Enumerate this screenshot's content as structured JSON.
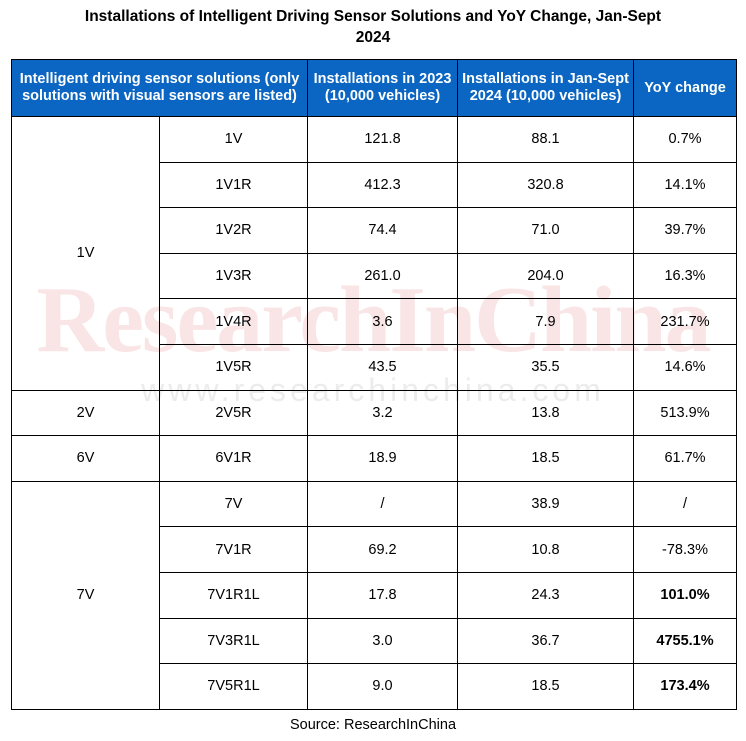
{
  "title_line1": "Installations of Intelligent Driving Sensor Solutions and YoY Change, Jan-Sept",
  "title_line2": "2024",
  "headers": {
    "col1": "Intelligent driving sensor solutions (only solutions with visual sensors are listed)",
    "col2": "Installations in 2023 (10,000 vehicles)",
    "col3": "Installations  in Jan-Sept 2024 (10,000 vehicles)",
    "col4": "YoY change"
  },
  "groups": [
    "1V",
    "2V",
    "6V",
    "7V"
  ],
  "rows": [
    {
      "solution": "1V",
      "y2023": "121.8",
      "y2024": "88.1",
      "yoy": "0.7%"
    },
    {
      "solution": "1V1R",
      "y2023": "412.3",
      "y2024": "320.8",
      "yoy": "14.1%"
    },
    {
      "solution": "1V2R",
      "y2023": "74.4",
      "y2024": "71.0",
      "yoy": "39.7%"
    },
    {
      "solution": "1V3R",
      "y2023": "261.0",
      "y2024": "204.0",
      "yoy": "16.3%"
    },
    {
      "solution": "1V4R",
      "y2023": "3.6",
      "y2024": "7.9",
      "yoy": "231.7%"
    },
    {
      "solution": "1V5R",
      "y2023": "43.5",
      "y2024": "35.5",
      "yoy": "14.6%"
    },
    {
      "solution": "2V5R",
      "y2023": "3.2",
      "y2024": "13.8",
      "yoy": "513.9%"
    },
    {
      "solution": "6V1R",
      "y2023": "18.9",
      "y2024": "18.5",
      "yoy": "61.7%"
    },
    {
      "solution": "7V",
      "y2023": "/",
      "y2024": "38.9",
      "yoy": "/"
    },
    {
      "solution": "7V1R",
      "y2023": "69.2",
      "y2024": "10.8",
      "yoy": "-78.3%"
    },
    {
      "solution": "7V1R1L",
      "y2023": "17.8",
      "y2024": "24.3",
      "yoy": "101.0%"
    },
    {
      "solution": "7V3R1L",
      "y2023": "3.0",
      "y2024": "36.7",
      "yoy": "4755.1%"
    },
    {
      "solution": "7V5R1L",
      "y2023": "9.0",
      "y2024": "18.5",
      "yoy": "173.4%"
    }
  ],
  "watermark_main": "ResearchInChina",
  "watermark_url": "www.researchinchina.com",
  "source": "Source: ResearchInChina",
  "colors": {
    "header_bg": "#0a66c2",
    "header_text": "#ffffff",
    "watermark": "#cd2828"
  },
  "chart_data": {
    "type": "table",
    "title": "Installations of Intelligent Driving Sensor Solutions and YoY Change, Jan-Sept 2024",
    "columns": [
      "Intelligent driving sensor solutions (only solutions with visual sensors are listed)",
      "Installations in 2023 (10,000 vehicles)",
      "Installations  in Jan-Sept 2024 (10,000 vehicles)",
      "YoY change"
    ],
    "categories": [
      "1V",
      "1V1R",
      "1V2R",
      "1V3R",
      "1V4R",
      "1V5R",
      "2V5R",
      "6V1R",
      "7V",
      "7V1R",
      "7V1R1L",
      "7V3R1L",
      "7V5R1L"
    ],
    "groups": {
      "1V": [
        "1V",
        "1V1R",
        "1V2R",
        "1V3R",
        "1V4R",
        "1V5R"
      ],
      "2V": [
        "2V5R"
      ],
      "6V": [
        "6V1R"
      ],
      "7V": [
        "7V",
        "7V1R",
        "7V1R1L",
        "7V3R1L",
        "7V5R1L"
      ]
    },
    "series": [
      {
        "name": "Installations in 2023 (10,000 vehicles)",
        "values": [
          121.8,
          412.3,
          74.4,
          261.0,
          3.6,
          43.5,
          3.2,
          18.9,
          null,
          69.2,
          17.8,
          3.0,
          9.0
        ]
      },
      {
        "name": "Installations  in Jan-Sept 2024 (10,000 vehicles)",
        "values": [
          88.1,
          320.8,
          71.0,
          204.0,
          7.9,
          35.5,
          13.8,
          18.5,
          38.9,
          10.8,
          24.3,
          36.7,
          18.5
        ]
      },
      {
        "name": "YoY change",
        "values": [
          0.7,
          14.1,
          39.7,
          16.3,
          231.7,
          14.6,
          513.9,
          61.7,
          null,
          -78.3,
          101.0,
          4755.1,
          173.4
        ]
      }
    ]
  }
}
